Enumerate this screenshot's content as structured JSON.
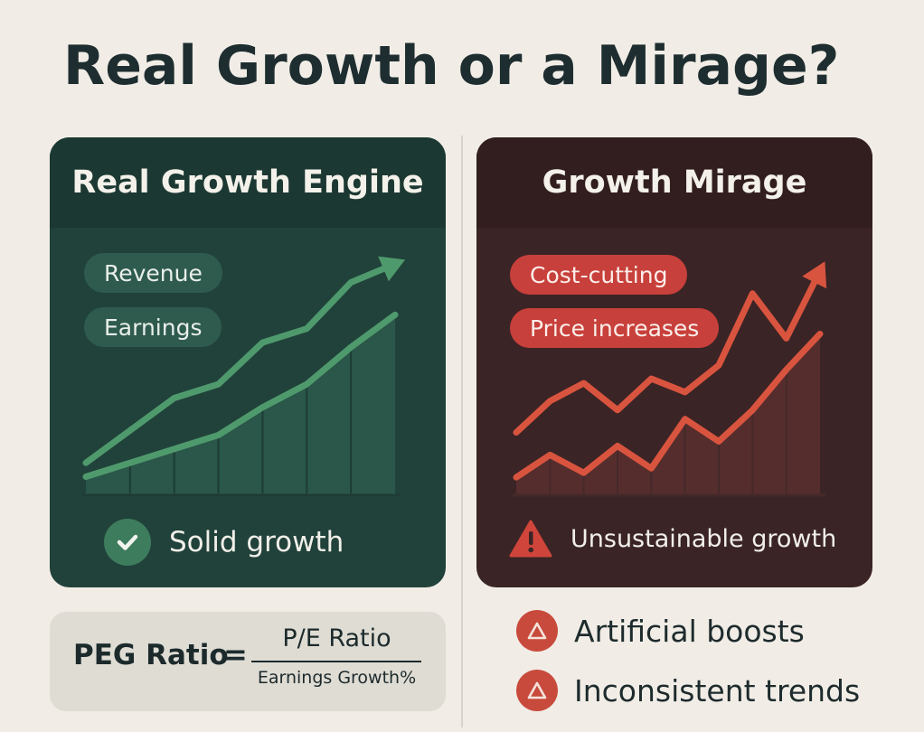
{
  "title": "Real Growth or a Mirage?",
  "colors": {
    "green_line": "#4f9a6d",
    "green_area": "#2b5a4c",
    "red_line": "#d9543f",
    "red_area": "#5a2f2f",
    "warn": "#c84a3c"
  },
  "left_card": {
    "header": "Real Growth Engine",
    "tags": [
      "Revenue",
      "Earnings"
    ],
    "status_icon": "check-icon",
    "status_text": "Solid growth"
  },
  "right_card": {
    "header": "Growth Mirage",
    "tags": [
      "Cost-cutting",
      "Price increases"
    ],
    "status_icon": "warning-triangle-icon",
    "status_text": "Unsustainable growth"
  },
  "peg": {
    "label": "PEG Ratio",
    "equals": "=",
    "numerator": "P/E Ratio",
    "denominator": "Earnings Growth%"
  },
  "warnings": [
    "Artificial boosts",
    "Inconsistent trends"
  ],
  "chart_data": [
    {
      "type": "line",
      "title": "Real Growth Engine",
      "x": [
        0,
        1,
        2,
        3,
        4,
        5,
        6,
        7
      ],
      "series": [
        {
          "name": "Revenue",
          "values": [
            14,
            28,
            42,
            48,
            66,
            72,
            92,
            100
          ],
          "arrow": true
        },
        {
          "name": "Earnings",
          "values": [
            8,
            14,
            20,
            26,
            38,
            48,
            64,
            78
          ],
          "arrow": false
        }
      ],
      "ylim": [
        0,
        100
      ],
      "legend": [
        "Revenue",
        "Earnings"
      ]
    },
    {
      "type": "line",
      "title": "Growth Mirage",
      "x": [
        0,
        1,
        2,
        3,
        4,
        5,
        6,
        7,
        8,
        9
      ],
      "series": [
        {
          "name": "Cost-cutting",
          "values": [
            28,
            42,
            50,
            38,
            52,
            46,
            58,
            90,
            70,
            100
          ],
          "arrow": true
        },
        {
          "name": "Price increases",
          "values": [
            8,
            18,
            10,
            22,
            12,
            34,
            24,
            38,
            56,
            72
          ],
          "arrow": false
        }
      ],
      "ylim": [
        0,
        100
      ],
      "legend": [
        "Cost-cutting",
        "Price increases"
      ]
    }
  ]
}
